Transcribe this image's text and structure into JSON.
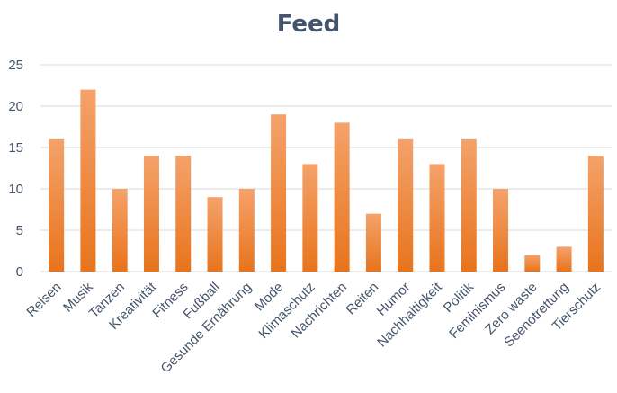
{
  "chart_data": {
    "type": "bar",
    "title": "Feed",
    "categories": [
      "Reisen",
      "Musik",
      "Tanzen",
      "Kreativität",
      "Fitness",
      "Fußball",
      "Gesunde Ernährung",
      "Mode",
      "Klimaschutz",
      "Nachrichten",
      "Reiten",
      "Humor",
      "Nachhaltigkeit",
      "Politik",
      "Feminismus",
      "Zero waste",
      "Seenotrettung",
      "Tierschutz"
    ],
    "values": [
      16,
      22,
      10,
      14,
      14,
      9,
      10,
      19,
      13,
      18,
      7,
      16,
      13,
      16,
      10,
      2,
      3,
      14
    ],
    "y_ticks": [
      "0",
      "5",
      "10",
      "15",
      "20",
      "25"
    ],
    "ylim": [
      0,
      25
    ],
    "xlabel": "",
    "ylabel": "",
    "grid": true,
    "legend": "none",
    "colors": {
      "bar_top": "#f4a26b",
      "bar_bottom": "#e8741c",
      "title": "#44546a",
      "axis_text": "#44546a",
      "grid": "#d9d9d9"
    }
  }
}
